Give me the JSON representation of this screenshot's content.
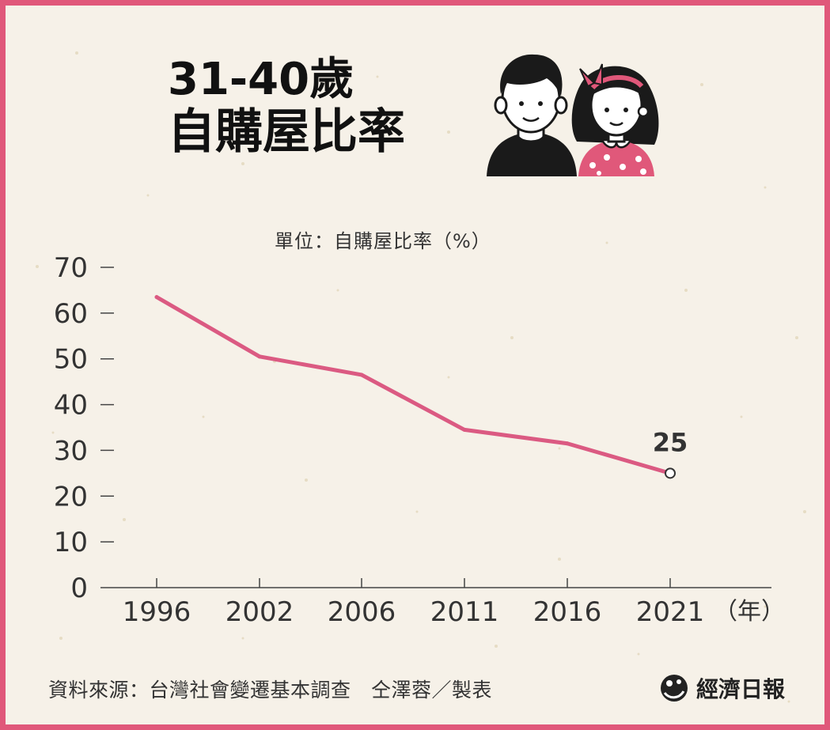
{
  "title": {
    "line1": "31-40歲",
    "line2": "自購屋比率"
  },
  "unit_label": "單位：自購屋比率（%）",
  "colors": {
    "border": "#e0587a",
    "background": "#f6f1e8",
    "line": "#db5a82",
    "axis": "#444444"
  },
  "chart_data": {
    "type": "line",
    "title": "31-40歲 自購屋比率",
    "ylabel": "單位：自購屋比率（%）",
    "xlabel": "（年）",
    "categories": [
      "1996",
      "2002",
      "2006",
      "2011",
      "2016",
      "2021"
    ],
    "values": [
      63.5,
      50.5,
      46.5,
      34.5,
      31.5,
      25
    ],
    "ylim": [
      0,
      70
    ],
    "yticks": [
      0,
      10,
      20,
      30,
      40,
      50,
      60,
      70
    ],
    "data_labels": [
      {
        "index": 5,
        "text": "25"
      }
    ],
    "grid": false,
    "legend": "none"
  },
  "footer": {
    "source": "資料來源：台灣社會變遷基本調查　仝澤蓉／製表",
    "brand": "經濟日報"
  },
  "icons": {
    "illustration": "couple-illustration-icon",
    "brand_logo": "udn-logo-icon"
  }
}
